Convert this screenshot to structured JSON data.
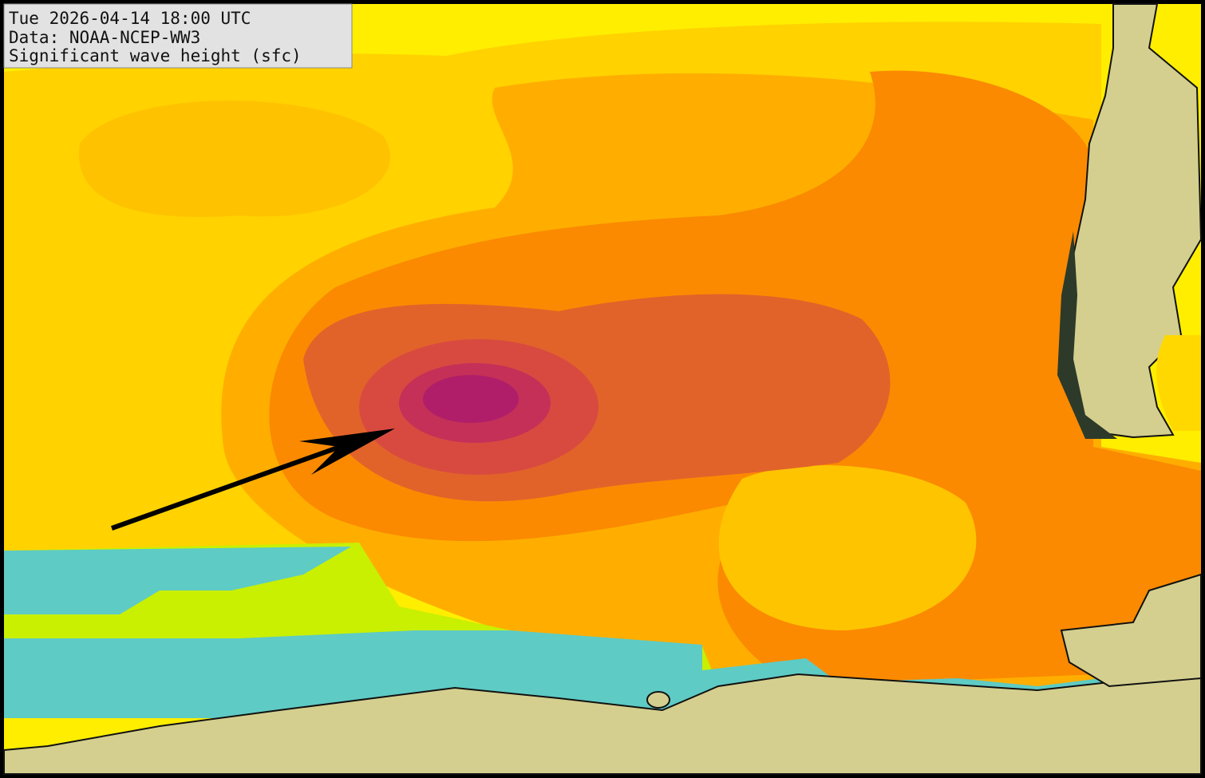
{
  "header": {
    "timestamp": "Tue 2026-04-14 18:00 UTC",
    "source": "Data: NOAA-NCEP-WW3",
    "field": "Significant wave height (sfc)"
  }
}
